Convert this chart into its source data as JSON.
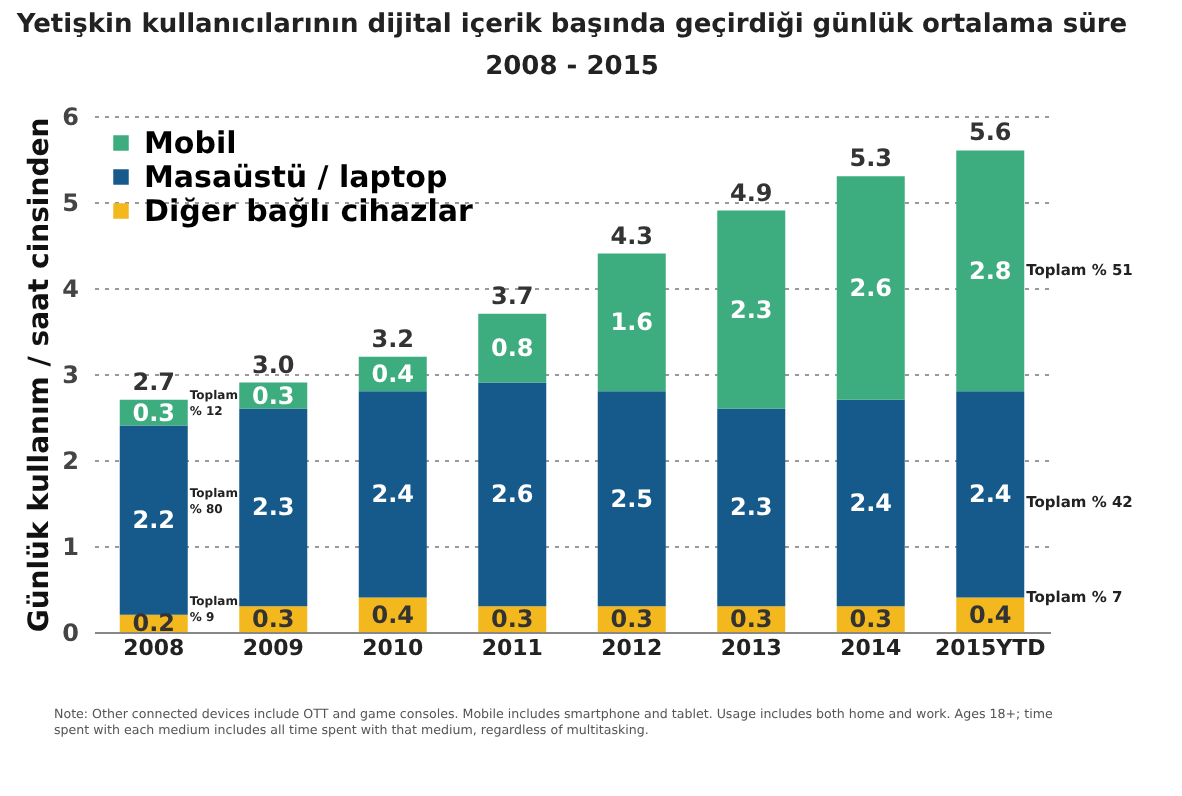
{
  "chart_data": {
    "type": "bar",
    "stacked": true,
    "title": "Yetişkin kullanıcılarının dijital içerik başında geçirdiği günlük ortalama süre",
    "subtitle": "2008 - 2015",
    "ylabel": "Günlük kullanım / saat cinsinden",
    "categories": [
      "2008",
      "2009",
      "2010",
      "2011",
      "2012",
      "2013",
      "2014",
      "2015YTD"
    ],
    "series": [
      {
        "name": "Diğer bağlı cihazlar",
        "color": "#f2b81d",
        "values": [
          0.2,
          0.3,
          0.4,
          0.3,
          0.3,
          0.3,
          0.3,
          0.4
        ]
      },
      {
        "name": "Masaüstü / laptop",
        "color": "#165a8c",
        "values": [
          2.2,
          2.3,
          2.4,
          2.6,
          2.5,
          2.3,
          2.4,
          2.4
        ]
      },
      {
        "name": "Mobil",
        "color": "#3dac7f",
        "values": [
          0.3,
          0.3,
          0.4,
          0.8,
          1.6,
          2.3,
          2.6,
          2.8
        ]
      }
    ],
    "totals": [
      "2.7",
      "3.0",
      "3.2",
      "3.7",
      "4.3",
      "4.9",
      "5.3",
      "5.6"
    ],
    "data_labels": true,
    "ylim": [
      0,
      6
    ],
    "yticks": [
      0,
      1,
      2,
      3,
      4,
      5,
      6
    ],
    "grid": "y",
    "legend": "top left",
    "annotations": [
      "Toplam % 12",
      "Toplam % 80",
      "Toplam % 9",
      "Toplam % 51",
      "Toplam % 42",
      "Toplam % 7",
      "Note: Other connected devices include OTT and game consoles. Mobile includes smartphone and tablet. Usage includes both home and work. Ages 18+; time spent with each medium includes all time spent with that medium, regardless of multitasking."
    ]
  }
}
